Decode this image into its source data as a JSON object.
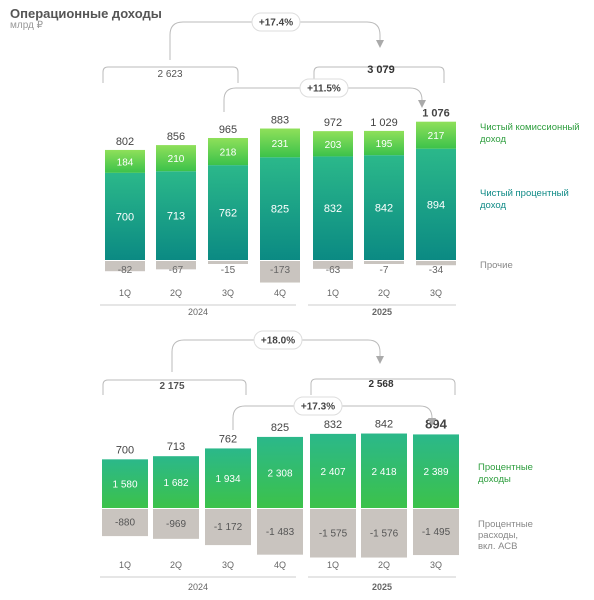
{
  "header": {
    "title": "Операционные доходы",
    "unit": "млрд ₽"
  },
  "colors": {
    "interest_top": "#2bb88a",
    "interest_bottom": "#0b8a83",
    "commission_top": "#8fe05a",
    "commission_bottom": "#3cc24a",
    "negative": "#c9c4bf",
    "label_green": "#2e9e3e",
    "label_teal": "#0f8a86"
  },
  "chart_data": [
    {
      "type": "bar",
      "categories": [
        "1Q",
        "2Q",
        "3Q",
        "4Q",
        "1Q",
        "2Q",
        "3Q"
      ],
      "years": [
        {
          "label": "2024"
        },
        {
          "label": "2025"
        }
      ],
      "series": [
        {
          "name": "Чистый процентный доход",
          "values": [
            700,
            713,
            762,
            825,
            832,
            842,
            894
          ]
        },
        {
          "name": "Чистый комиссионный доход",
          "values": [
            184,
            210,
            218,
            231,
            203,
            195,
            217
          ]
        },
        {
          "name": "Прочие",
          "values": [
            -82,
            -67,
            -15,
            -173,
            -63,
            -7,
            -34
          ]
        }
      ],
      "totals": [
        802,
        856,
        965,
        883,
        972,
        1029,
        1076
      ],
      "labels": {
        "interest": "Чистый процентный доход",
        "commission": "Чистый комиссионный доход",
        "other": "Прочие",
        "values": [
          "700",
          "713",
          "762",
          "825",
          "832",
          "842",
          "894"
        ],
        "commission_values": [
          "184",
          "210",
          "218",
          "231",
          "203",
          "195",
          "217"
        ],
        "other_values": [
          "-82",
          "-67",
          "-15",
          "-173",
          "-63",
          "-7",
          "-34"
        ],
        "totals": [
          "802",
          "856",
          "965",
          "883",
          "972",
          "1 029",
          "1 076"
        ]
      },
      "annotations": {
        "sum_2024": "2 623",
        "sum_2025": "3 079",
        "growth_ytd": "+17.4%",
        "growth_q": "+11.5%"
      }
    },
    {
      "type": "bar",
      "categories": [
        "1Q",
        "2Q",
        "3Q",
        "4Q",
        "1Q",
        "2Q",
        "3Q"
      ],
      "years": [
        {
          "label": "2024"
        },
        {
          "label": "2025"
        }
      ],
      "series": [
        {
          "name": "Процентные доходы",
          "values": [
            1580,
            1682,
            1934,
            2308,
            2407,
            2418,
            2389
          ]
        },
        {
          "name": "Процентные расходы, вкл. АСВ",
          "values": [
            -880,
            -969,
            -1172,
            -1483,
            -1575,
            -1576,
            -1495
          ]
        }
      ],
      "totals": [
        700,
        713,
        762,
        825,
        832,
        842,
        894
      ],
      "labels": {
        "income": "Процентные доходы",
        "expense_lines": [
          "Процентные",
          "расходы,",
          "вкл. АСВ"
        ],
        "income_values": [
          "1 580",
          "1 682",
          "1 934",
          "2 308",
          "2 407",
          "2 418",
          "2 389"
        ],
        "expense_values": [
          "-880",
          "-969",
          "-1 172",
          "-1 483",
          "-1 575",
          "-1 576",
          "-1 495"
        ],
        "totals": [
          "700",
          "713",
          "762",
          "825",
          "832",
          "842",
          "894"
        ]
      },
      "annotations": {
        "sum_2024": "2 175",
        "sum_2025": "2 568",
        "growth_ytd": "+18.0%",
        "growth_q": "+17.3%"
      }
    }
  ]
}
